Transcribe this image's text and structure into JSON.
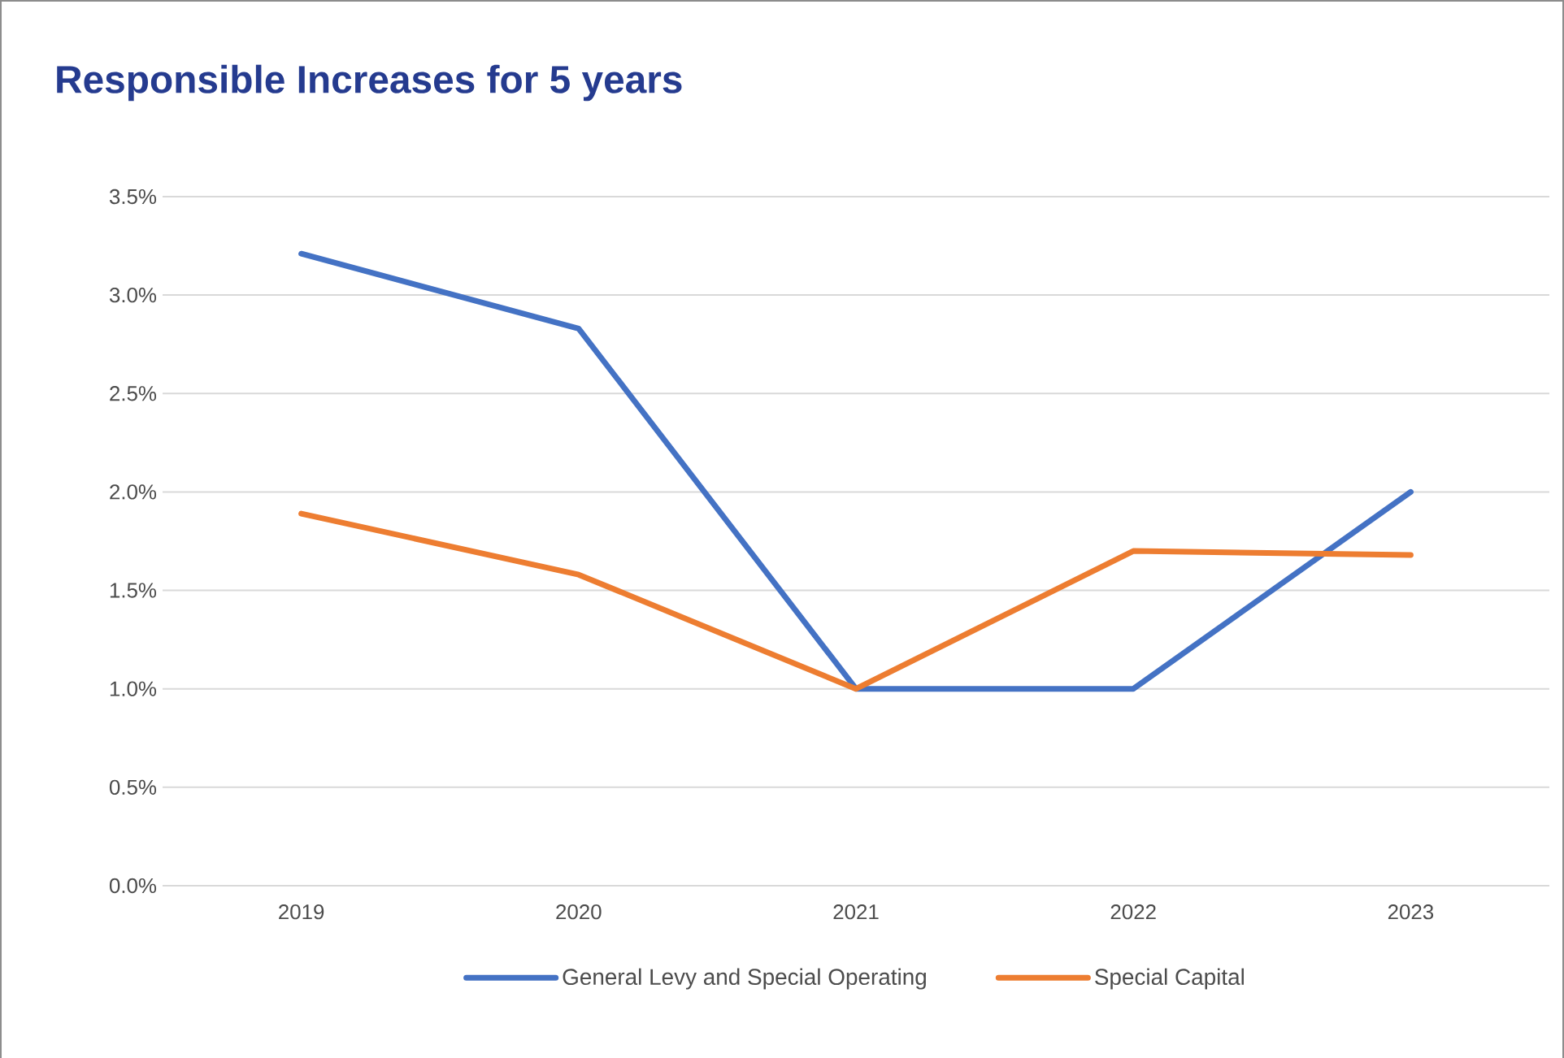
{
  "chart_data": {
    "type": "line",
    "title": "Responsible Increases for 5 years",
    "categories": [
      "2019",
      "2020",
      "2021",
      "2022",
      "2023"
    ],
    "series": [
      {
        "name": "General Levy and Special Operating",
        "color": "#4472c4",
        "values": [
          3.21,
          2.83,
          1.0,
          1.0,
          2.0
        ]
      },
      {
        "name": "Special Capital",
        "color": "#ed7d31",
        "values": [
          1.89,
          1.58,
          1.0,
          1.7,
          1.68
        ]
      }
    ],
    "ylim": [
      0,
      3.5
    ],
    "yticks": [
      {
        "value": 0,
        "label": "0.0%"
      },
      {
        "value": 0.5,
        "label": "0.5%"
      },
      {
        "value": 1,
        "label": "1.0%"
      },
      {
        "value": 1.5,
        "label": "1.5%"
      },
      {
        "value": 2,
        "label": "2.0%"
      },
      {
        "value": 2.5,
        "label": "2.5%"
      },
      {
        "value": 3,
        "label": "3.0%"
      },
      {
        "value": 3.5,
        "label": "3.5%"
      }
    ],
    "grid": "y",
    "legend": "bottom",
    "marker": "none",
    "line_style": "solid"
  }
}
